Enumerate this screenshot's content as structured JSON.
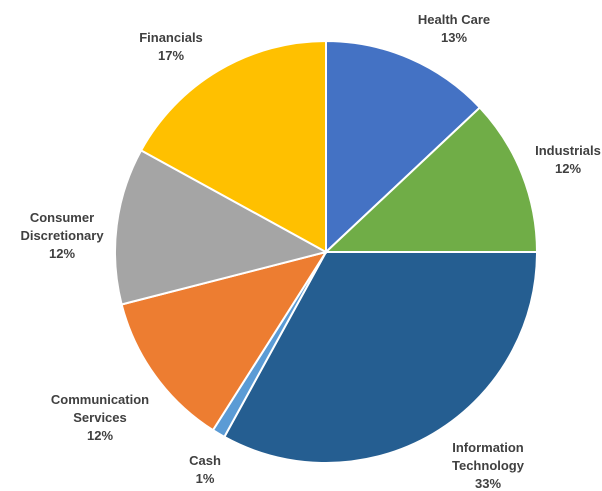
{
  "chart_data": {
    "type": "pie",
    "categories": [
      "Health Care",
      "Industrials",
      "Information Technology",
      "Cash",
      "Communication Services",
      "Consumer Discretionary",
      "Financials"
    ],
    "values": [
      13,
      12,
      33,
      1,
      12,
      12,
      17
    ],
    "value_labels": [
      "13%",
      "12%",
      "33%",
      "1%",
      "12%",
      "12%",
      "17%"
    ],
    "colors": [
      "#4472c4",
      "#70ad47",
      "#255e91",
      "#5b9bd5",
      "#ed7d31",
      "#a5a5a5",
      "#ffc000"
    ]
  }
}
